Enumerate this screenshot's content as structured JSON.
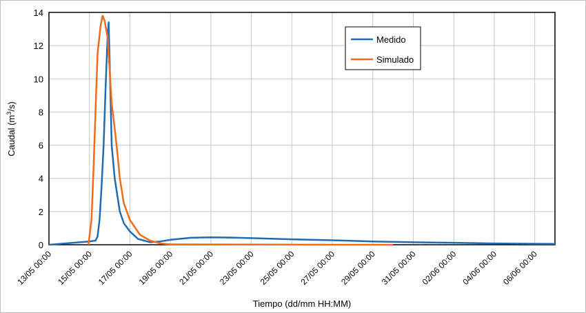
{
  "chart_data": {
    "type": "line",
    "title": "",
    "xlabel": "Tiempo (dd/mm HH:MM)",
    "ylabel_main": "Caudal (m",
    "ylabel_sup": "3",
    "ylabel_tail": "/s)",
    "ylim": [
      0,
      14
    ],
    "yticks": [
      0,
      2,
      4,
      6,
      8,
      10,
      12,
      14
    ],
    "x_unit": "days",
    "xlim": [
      "13/05 00:00",
      "07/06 00:00"
    ],
    "x_tick_labels": [
      "13/05 00:00",
      "15/05 00:00",
      "17/05 00:00",
      "19/05 00:00",
      "21/05 00:00",
      "23/05 00:00",
      "25/05 00:00",
      "27/05 00:00",
      "29/05 00:00",
      "31/05 00:00",
      "02/06 00:00",
      "04/06 00:00",
      "06/06 00:00"
    ],
    "grid": true,
    "legend_position": "top-right",
    "series": [
      {
        "name": "Medido",
        "color": "#1f6bb5",
        "points": [
          [
            "13/05 00:00",
            0.0
          ],
          [
            "14/05 00:00",
            0.1
          ],
          [
            "15/05 00:00",
            0.2
          ],
          [
            "15/05 07:12",
            0.25
          ],
          [
            "15/05 09:36",
            0.5
          ],
          [
            "15/05 12:00",
            1.5
          ],
          [
            "15/05 14:24",
            3.5
          ],
          [
            "15/05 16:48",
            6.0
          ],
          [
            "15/05 19:12",
            9.5
          ],
          [
            "15/05 21:36",
            12.6
          ],
          [
            "15/05 22:48",
            13.4
          ],
          [
            "16/05 00:00",
            11.0
          ],
          [
            "16/05 02:24",
            6.0
          ],
          [
            "16/05 06:00",
            4.0
          ],
          [
            "16/05 12:00",
            2.0
          ],
          [
            "16/05 16:48",
            1.3
          ],
          [
            "17/05 00:00",
            0.8
          ],
          [
            "17/05 09:36",
            0.35
          ],
          [
            "18/05 00:00",
            0.15
          ],
          [
            "18/05 12:00",
            0.2
          ],
          [
            "19/05 00:00",
            0.3
          ],
          [
            "20/05 00:00",
            0.42
          ],
          [
            "21/05 00:00",
            0.45
          ],
          [
            "22/05 00:00",
            0.43
          ],
          [
            "23/05 00:00",
            0.4
          ],
          [
            "25/05 00:00",
            0.33
          ],
          [
            "27/05 00:00",
            0.27
          ],
          [
            "29/05 00:00",
            0.2
          ],
          [
            "31/05 00:00",
            0.15
          ],
          [
            "02/06 00:00",
            0.12
          ],
          [
            "04/06 00:00",
            0.08
          ],
          [
            "07/06 00:00",
            0.05
          ]
        ]
      },
      {
        "name": "Simulado",
        "color": "#f26a1b",
        "points": [
          [
            "14/05 22:48",
            0.0
          ],
          [
            "15/05 02:24",
            1.5
          ],
          [
            "15/05 04:48",
            4.5
          ],
          [
            "15/05 07:12",
            8.0
          ],
          [
            "15/05 09:36",
            11.5
          ],
          [
            "15/05 13:12",
            13.2
          ],
          [
            "15/05 15:36",
            13.8
          ],
          [
            "15/05 18:00",
            13.5
          ],
          [
            "15/05 21:36",
            12.5
          ],
          [
            "16/05 00:00",
            10.5
          ],
          [
            "16/05 02:24",
            8.5
          ],
          [
            "16/05 06:00",
            7.0
          ],
          [
            "16/05 09:36",
            5.3
          ],
          [
            "16/05 12:00",
            4.0
          ],
          [
            "16/05 16:48",
            2.5
          ],
          [
            "17/05 00:00",
            1.5
          ],
          [
            "17/05 12:00",
            0.6
          ],
          [
            "18/05 00:00",
            0.25
          ],
          [
            "18/05 12:00",
            0.08
          ],
          [
            "19/05 00:00",
            0.02
          ],
          [
            "29/05 00:00",
            0.0
          ],
          [
            "30/05 00:00",
            0.0
          ]
        ]
      }
    ]
  }
}
